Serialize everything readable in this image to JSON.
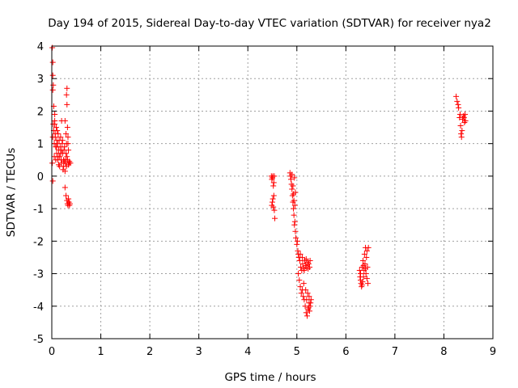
{
  "chart_data": {
    "type": "scatter",
    "title": "Day 194 of 2015, Sidereal Day-to-day VTEC variation (SDTVAR) for receiver nya2",
    "xlabel": "GPS time / hours",
    "ylabel": "SDTVAR / TECUs",
    "xlim": [
      0,
      9
    ],
    "ylim": [
      -5,
      4
    ],
    "x_ticks": [
      0,
      1,
      2,
      3,
      4,
      5,
      6,
      7,
      8,
      9
    ],
    "y_ticks": [
      -5,
      -4,
      -3,
      -2,
      -1,
      0,
      1,
      2,
      3,
      4
    ],
    "grid": true,
    "marker": "+",
    "series": [
      {
        "name": "nya2",
        "color": "#ff0000",
        "points": [
          [
            0.01,
            3.95
          ],
          [
            0.02,
            3.5
          ],
          [
            0.02,
            3.1
          ],
          [
            0.03,
            2.8
          ],
          [
            0.02,
            2.65
          ],
          [
            0.04,
            2.15
          ],
          [
            0.03,
            1.6
          ],
          [
            0.02,
            1.2
          ],
          [
            0.01,
            0.4
          ],
          [
            0.02,
            -0.15
          ],
          [
            0.04,
            1.4
          ],
          [
            0.05,
            1.0
          ],
          [
            0.06,
            1.6
          ],
          [
            0.05,
            0.6
          ],
          [
            0.07,
            1.2
          ],
          [
            0.06,
            1.7
          ],
          [
            0.08,
            0.9
          ],
          [
            0.09,
            1.5
          ],
          [
            0.08,
            0.5
          ],
          [
            0.1,
            1.1
          ],
          [
            0.11,
            1.4
          ],
          [
            0.1,
            0.7
          ],
          [
            0.12,
            1.0
          ],
          [
            0.13,
            1.3
          ],
          [
            0.12,
            0.5
          ],
          [
            0.14,
            0.8
          ],
          [
            0.15,
            1.1
          ],
          [
            0.14,
            0.35
          ],
          [
            0.16,
            0.6
          ],
          [
            0.17,
            0.9
          ],
          [
            0.18,
            1.2
          ],
          [
            0.16,
            0.3
          ],
          [
            0.19,
            0.5
          ],
          [
            0.2,
            0.8
          ],
          [
            0.21,
            1.0
          ],
          [
            0.2,
            0.4
          ],
          [
            0.22,
            0.7
          ],
          [
            0.23,
            0.2
          ],
          [
            0.24,
            0.5
          ],
          [
            0.25,
            0.8
          ],
          [
            0.24,
            0.3
          ],
          [
            0.26,
            0.45
          ],
          [
            0.27,
            0.15
          ],
          [
            0.28,
            0.5
          ],
          [
            0.27,
            1.7
          ],
          [
            0.29,
            1.3
          ],
          [
            0.3,
            1.0
          ],
          [
            0.28,
            0.4
          ],
          [
            0.31,
            0.6
          ],
          [
            0.3,
            0.3
          ],
          [
            0.32,
            1.5
          ],
          [
            0.33,
            1.2
          ],
          [
            0.32,
            0.5
          ],
          [
            0.34,
            0.8
          ],
          [
            0.35,
            0.4
          ],
          [
            0.34,
            0.35
          ],
          [
            0.36,
            0.45
          ],
          [
            0.38,
            0.4
          ],
          [
            0.3,
            2.5
          ],
          [
            0.31,
            2.7
          ],
          [
            0.31,
            2.2
          ],
          [
            0.27,
            -0.35
          ],
          [
            0.29,
            -0.6
          ],
          [
            0.31,
            -0.75
          ],
          [
            0.33,
            -0.9
          ],
          [
            0.35,
            -0.8
          ],
          [
            0.37,
            -0.85
          ],
          [
            0.34,
            -0.7
          ],
          [
            0.32,
            -0.85
          ],
          [
            0.36,
            -0.9
          ],
          [
            0.06,
            1.9
          ],
          [
            0.07,
            1.3
          ],
          [
            0.1,
            0.9
          ],
          [
            0.13,
            0.6
          ],
          [
            0.18,
            0.7
          ],
          [
            0.22,
            1.1
          ],
          [
            0.26,
            0.9
          ],
          [
            0.29,
            0.7
          ],
          [
            0.33,
            1.0
          ],
          [
            0.2,
            1.7
          ],
          [
            4.48,
            0.0
          ],
          [
            4.49,
            -0.1
          ],
          [
            4.5,
            -0.05
          ],
          [
            4.51,
            0.0
          ],
          [
            4.52,
            -0.3
          ],
          [
            4.53,
            -0.6
          ],
          [
            4.5,
            -0.8
          ],
          [
            4.52,
            -0.95
          ],
          [
            4.54,
            -1.05
          ],
          [
            4.55,
            -1.3
          ],
          [
            4.51,
            -0.7
          ],
          [
            4.53,
            -0.2
          ],
          [
            4.54,
            0.0
          ],
          [
            4.49,
            -0.9
          ],
          [
            4.86,
            0.1
          ],
          [
            4.87,
            0.0
          ],
          [
            4.88,
            -0.1
          ],
          [
            4.89,
            -0.25
          ],
          [
            4.9,
            -0.4
          ],
          [
            4.91,
            -0.6
          ],
          [
            4.92,
            -0.8
          ],
          [
            4.93,
            -1.0
          ],
          [
            4.94,
            -1.2
          ],
          [
            4.95,
            -1.5
          ],
          [
            4.9,
            0.05
          ],
          [
            4.92,
            -0.3
          ],
          [
            4.93,
            -0.55
          ],
          [
            4.94,
            -0.75
          ],
          [
            4.96,
            -0.9
          ],
          [
            4.95,
            -0.05
          ],
          [
            4.97,
            -0.5
          ],
          [
            4.96,
            -1.4
          ],
          [
            4.97,
            -1.7
          ],
          [
            4.98,
            -1.9
          ],
          [
            5.0,
            -2.1
          ],
          [
            5.02,
            -2.3
          ],
          [
            5.04,
            -2.5
          ],
          [
            5.06,
            -2.6
          ],
          [
            5.08,
            -2.8
          ],
          [
            5.1,
            -2.9
          ],
          [
            5.12,
            -2.7
          ],
          [
            5.14,
            -2.85
          ],
          [
            5.16,
            -2.6
          ],
          [
            5.18,
            -2.75
          ],
          [
            5.2,
            -2.8
          ],
          [
            5.22,
            -2.65
          ],
          [
            5.24,
            -2.7
          ],
          [
            5.26,
            -2.8
          ],
          [
            5.01,
            -2.0
          ],
          [
            5.03,
            -2.4
          ],
          [
            5.07,
            -2.4
          ],
          [
            5.11,
            -2.5
          ],
          [
            5.15,
            -2.9
          ],
          [
            5.19,
            -2.55
          ],
          [
            5.23,
            -2.85
          ],
          [
            5.27,
            -2.6
          ],
          [
            5.03,
            -3.0
          ],
          [
            5.05,
            -3.2
          ],
          [
            5.07,
            -3.4
          ],
          [
            5.09,
            -3.6
          ],
          [
            5.11,
            -3.5
          ],
          [
            5.13,
            -3.7
          ],
          [
            5.15,
            -3.8
          ],
          [
            5.17,
            -4.0
          ],
          [
            5.19,
            -4.2
          ],
          [
            5.21,
            -4.3
          ],
          [
            5.23,
            -4.1
          ],
          [
            5.25,
            -3.9
          ],
          [
            5.27,
            -4.0
          ],
          [
            5.29,
            -3.8
          ],
          [
            5.22,
            -3.6
          ],
          [
            5.25,
            -3.7
          ],
          [
            5.28,
            -3.9
          ],
          [
            5.2,
            -3.8
          ],
          [
            5.18,
            -3.5
          ],
          [
            5.14,
            -3.3
          ],
          [
            5.24,
            -4.05
          ],
          [
            5.26,
            -4.15
          ],
          [
            6.28,
            -2.9
          ],
          [
            6.29,
            -3.1
          ],
          [
            6.3,
            -3.2
          ],
          [
            6.31,
            -3.3
          ],
          [
            6.32,
            -3.4
          ],
          [
            6.3,
            -3.0
          ],
          [
            6.33,
            -2.8
          ],
          [
            6.34,
            -3.25
          ],
          [
            6.35,
            -2.6
          ],
          [
            6.36,
            -3.1
          ],
          [
            6.37,
            -2.9
          ],
          [
            6.38,
            -2.4
          ],
          [
            6.39,
            -2.7
          ],
          [
            6.4,
            -2.2
          ],
          [
            6.41,
            -3.0
          ],
          [
            6.42,
            -2.5
          ],
          [
            6.43,
            -2.3
          ],
          [
            6.44,
            -2.8
          ],
          [
            6.45,
            -3.3
          ],
          [
            6.46,
            -2.2
          ],
          [
            6.33,
            -3.35
          ],
          [
            6.36,
            -2.75
          ],
          [
            6.4,
            -2.85
          ],
          [
            6.43,
            -3.15
          ],
          [
            8.25,
            2.45
          ],
          [
            8.27,
            2.3
          ],
          [
            8.29,
            2.2
          ],
          [
            8.3,
            2.1
          ],
          [
            8.32,
            1.8
          ],
          [
            8.34,
            1.55
          ],
          [
            8.35,
            1.3
          ],
          [
            8.36,
            1.2
          ],
          [
            8.38,
            1.75
          ],
          [
            8.4,
            1.85
          ],
          [
            8.42,
            1.65
          ],
          [
            8.43,
            1.9
          ],
          [
            8.44,
            1.7
          ],
          [
            8.33,
            1.9
          ],
          [
            8.37,
            1.4
          ],
          [
            8.41,
            1.8
          ]
        ]
      }
    ]
  }
}
